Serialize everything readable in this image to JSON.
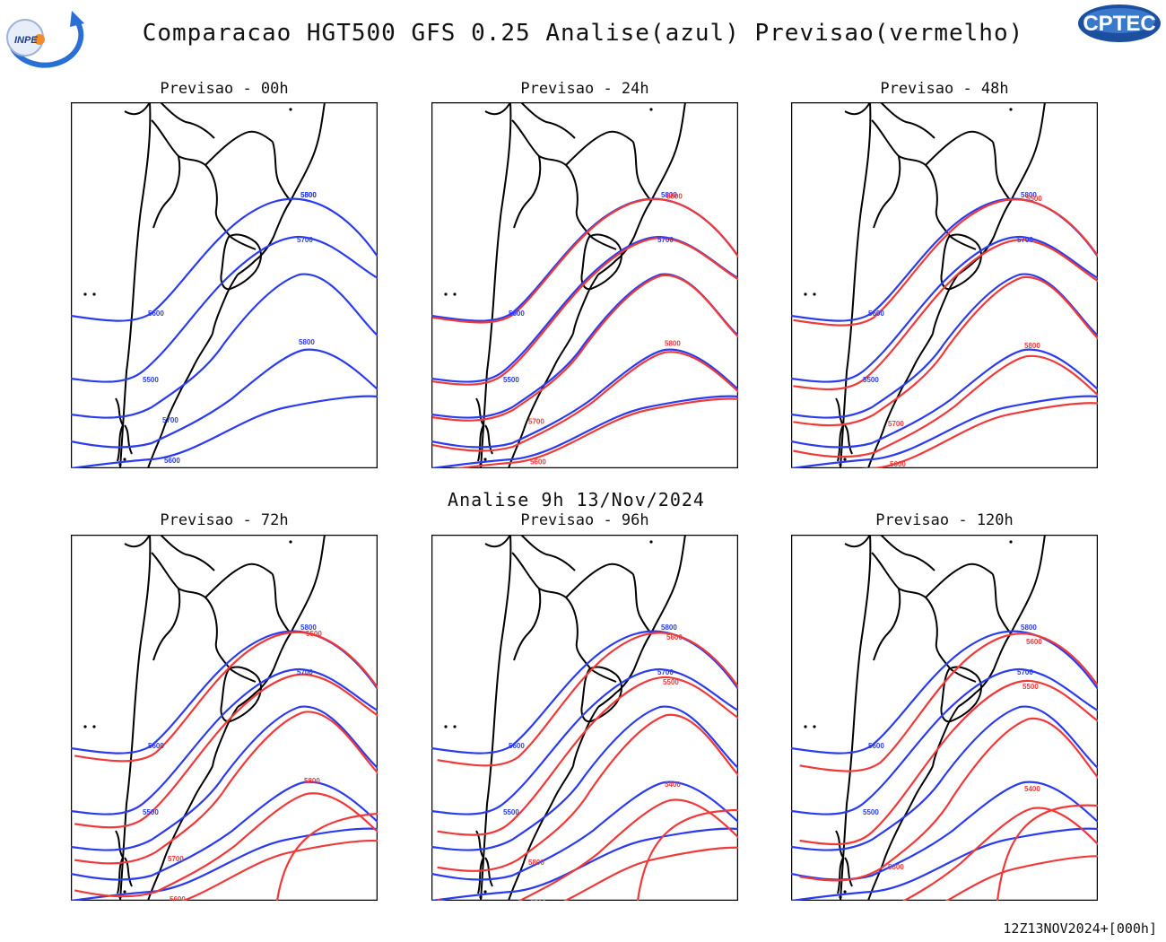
{
  "header": {
    "title": "Comparacao HGT500 GFS 0.25 Analise(azul) Previsao(vermelho)",
    "analysis_label": "Analise 9h 13/Nov/2024",
    "timestamp": "12Z13NOV2024+[000h]"
  },
  "logos": {
    "left": "INPE",
    "right": "CPTEC"
  },
  "colors": {
    "analysis": "#2b3cf0",
    "forecast": "#f03a3a",
    "coast": "#000000"
  },
  "panels": [
    {
      "title": "Previsao - 00h",
      "forecast": false,
      "labels": [
        "5800",
        "5700",
        "5600",
        "5500",
        "5800",
        "5700",
        "5600",
        "5500"
      ]
    },
    {
      "title": "Previsao - 24h",
      "forecast": true,
      "labels": [
        "5800",
        "5700",
        "5600",
        "5500",
        "5800",
        "5700",
        "5600",
        "5500"
      ]
    },
    {
      "title": "Previsao - 48h",
      "forecast": true,
      "labels": [
        "5800",
        "5700",
        "5600",
        "5500",
        "5800",
        "5700",
        "5600",
        "5500"
      ]
    },
    {
      "title": "Previsao - 72h",
      "forecast": true,
      "labels": [
        "5800",
        "5700",
        "5600",
        "5500",
        "5800",
        "5700",
        "5600",
        "5500"
      ]
    },
    {
      "title": "Previsao - 96h",
      "forecast": true,
      "labels": [
        "5800",
        "5700",
        "5600",
        "5500",
        "5400",
        "5800",
        "5700",
        "5600",
        "5500"
      ]
    },
    {
      "title": "Previsao - 120h",
      "forecast": true,
      "labels": [
        "5800",
        "5700",
        "5600",
        "5500",
        "5400",
        "5800",
        "5700",
        "5600",
        "5500"
      ]
    }
  ]
}
